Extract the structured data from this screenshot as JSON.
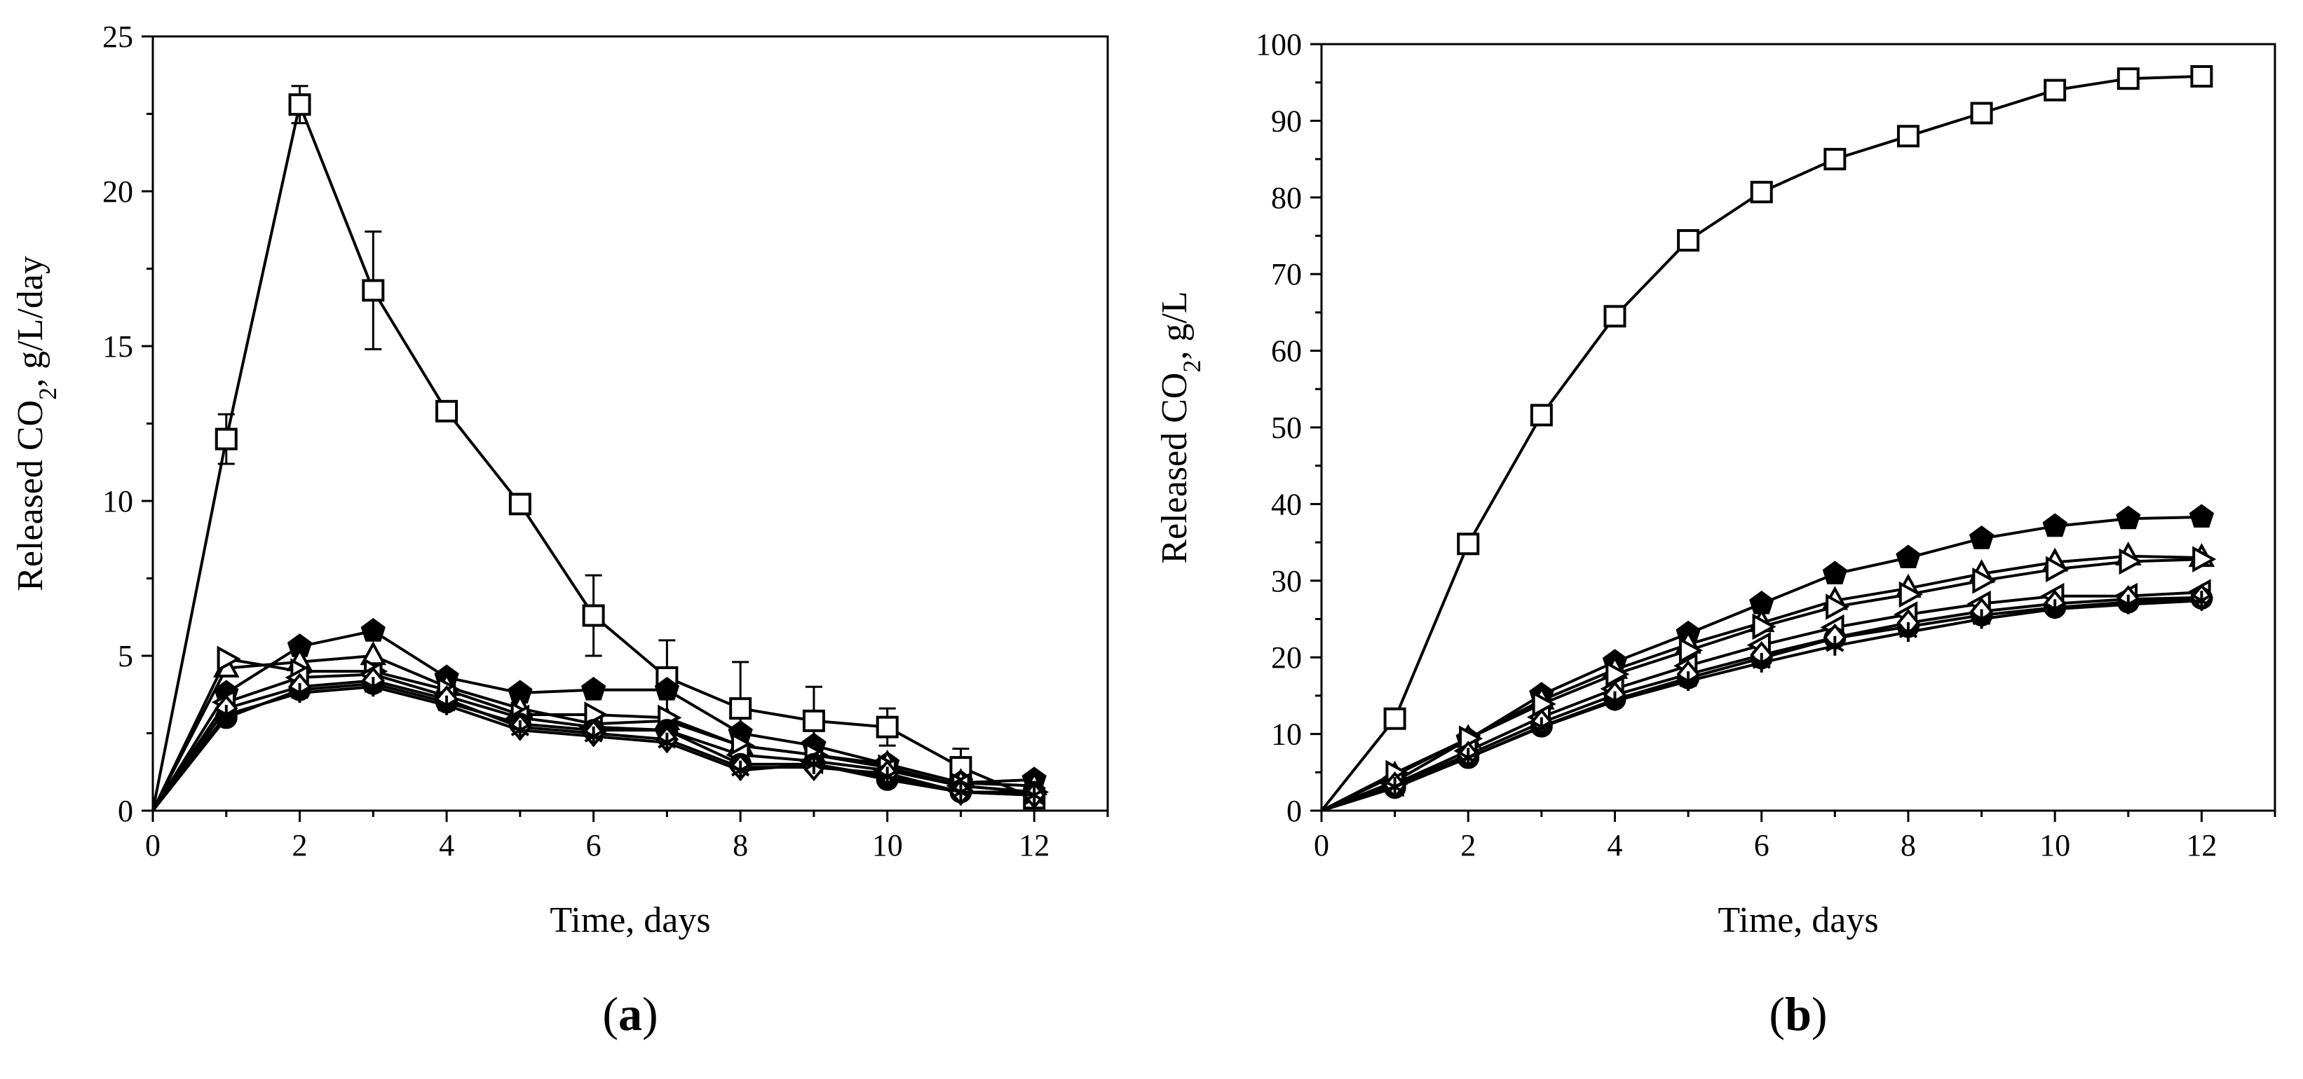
{
  "chart_data": [
    {
      "type": "line",
      "panel_label": "a",
      "xlabel": "Time, days",
      "ylabel_main": "Released CO",
      "ylabel_sub": "2",
      "ylabel_tail": ", g/L/day",
      "xlim": [
        0,
        13
      ],
      "ylim": [
        0,
        25
      ],
      "x_ticks": [
        "0",
        "2",
        "4",
        "6",
        "8",
        "10",
        "12"
      ],
      "y_ticks": [
        "0",
        "5",
        "10",
        "15",
        "20",
        "25"
      ],
      "grid": false,
      "x": [
        0,
        1,
        2,
        3,
        4,
        5,
        6,
        7,
        8,
        9,
        10,
        11,
        12
      ],
      "series": [
        {
          "marker": "square-open",
          "values": [
            0,
            12.0,
            22.8,
            16.8,
            12.9,
            9.9,
            6.3,
            4.3,
            3.3,
            2.9,
            2.7,
            1.4,
            0.4
          ],
          "errors": [
            0,
            0.8,
            0.6,
            1.9,
            0.3,
            0.3,
            1.3,
            1.2,
            1.5,
            1.1,
            0.6,
            0.6,
            0.2
          ]
        },
        {
          "marker": "pentagon-filled",
          "values": [
            0,
            3.8,
            5.3,
            5.8,
            4.3,
            3.8,
            3.9,
            3.9,
            2.5,
            2.1,
            1.5,
            0.9,
            1.0
          ]
        },
        {
          "marker": "triangle-up-open",
          "values": [
            0,
            4.6,
            4.8,
            5.0,
            4.0,
            3.3,
            2.8,
            2.9,
            2.1,
            1.8,
            1.5,
            0.9,
            0.8
          ]
        },
        {
          "marker": "triangle-right-open",
          "values": [
            0,
            4.9,
            4.5,
            4.5,
            3.9,
            3.1,
            3.1,
            3.0,
            2.1,
            1.8,
            1.4,
            0.8,
            0.6
          ]
        },
        {
          "marker": "triangle-left-open",
          "values": [
            0,
            3.5,
            4.3,
            4.4,
            3.7,
            3.0,
            2.7,
            2.6,
            1.8,
            1.6,
            1.3,
            0.8,
            0.6
          ]
        },
        {
          "marker": "circle-filled",
          "values": [
            0,
            3.0,
            3.9,
            4.1,
            3.5,
            2.8,
            2.6,
            2.6,
            1.5,
            1.5,
            1.0,
            0.6,
            0.6
          ]
        },
        {
          "marker": "diamond-open",
          "values": [
            0,
            3.3,
            4.0,
            4.2,
            3.6,
            2.7,
            2.5,
            2.3,
            1.4,
            1.4,
            1.2,
            0.6,
            0.5
          ]
        },
        {
          "marker": "star",
          "values": [
            0,
            3.1,
            3.8,
            4.0,
            3.4,
            2.6,
            2.4,
            2.2,
            1.3,
            1.5,
            1.1,
            0.6,
            0.5
          ]
        }
      ]
    },
    {
      "type": "line",
      "panel_label": "b",
      "xlabel": "Time, days",
      "ylabel_main": "Released CO",
      "ylabel_sub": "2",
      "ylabel_tail": ", g/L",
      "xlim": [
        0,
        13
      ],
      "ylim": [
        0,
        100
      ],
      "x_ticks": [
        "0",
        "2",
        "4",
        "6",
        "8",
        "10",
        "12"
      ],
      "y_ticks": [
        "0",
        "10",
        "20",
        "30",
        "40",
        "50",
        "60",
        "70",
        "80",
        "90",
        "100"
      ],
      "grid": false,
      "x": [
        0,
        1,
        2,
        3,
        4,
        5,
        6,
        7,
        8,
        9,
        10,
        11,
        12
      ],
      "series": [
        {
          "marker": "square-open",
          "values": [
            0,
            12.0,
            34.8,
            51.6,
            64.5,
            74.4,
            80.7,
            85.0,
            88.0,
            91.0,
            94.0,
            95.5,
            95.8
          ]
        },
        {
          "marker": "pentagon-filled",
          "values": [
            0,
            3.8,
            9.3,
            15.1,
            19.4,
            23.1,
            27.0,
            30.9,
            33.0,
            35.5,
            37.1,
            38.1,
            38.3
          ]
        },
        {
          "marker": "triangle-up-open",
          "values": [
            0,
            4.6,
            9.4,
            14.4,
            18.4,
            21.7,
            24.5,
            27.4,
            29.0,
            30.9,
            32.4,
            33.2,
            33.0
          ]
        },
        {
          "marker": "triangle-right-open",
          "values": [
            0,
            4.9,
            9.4,
            13.9,
            17.8,
            20.9,
            24.0,
            26.6,
            28.2,
            30.0,
            31.5,
            32.5,
            32.8
          ]
        },
        {
          "marker": "triangle-left-open",
          "values": [
            0,
            3.5,
            7.8,
            12.2,
            15.9,
            18.9,
            21.6,
            23.9,
            25.6,
            27.0,
            28.0,
            28.0,
            28.5
          ]
        },
        {
          "marker": "circle-filled",
          "values": [
            0,
            3.0,
            6.9,
            11.0,
            14.5,
            17.3,
            19.9,
            22.5,
            24.0,
            25.5,
            26.5,
            27.2,
            27.7
          ]
        },
        {
          "marker": "diamond-open",
          "values": [
            0,
            3.3,
            7.3,
            11.5,
            15.1,
            17.8,
            20.3,
            22.6,
            24.5,
            26.0,
            27.0,
            27.6,
            27.8
          ]
        },
        {
          "marker": "star",
          "values": [
            0,
            3.1,
            6.9,
            10.9,
            14.3,
            16.9,
            19.3,
            21.5,
            23.3,
            25.0,
            26.3,
            26.9,
            27.4
          ]
        }
      ]
    }
  ]
}
